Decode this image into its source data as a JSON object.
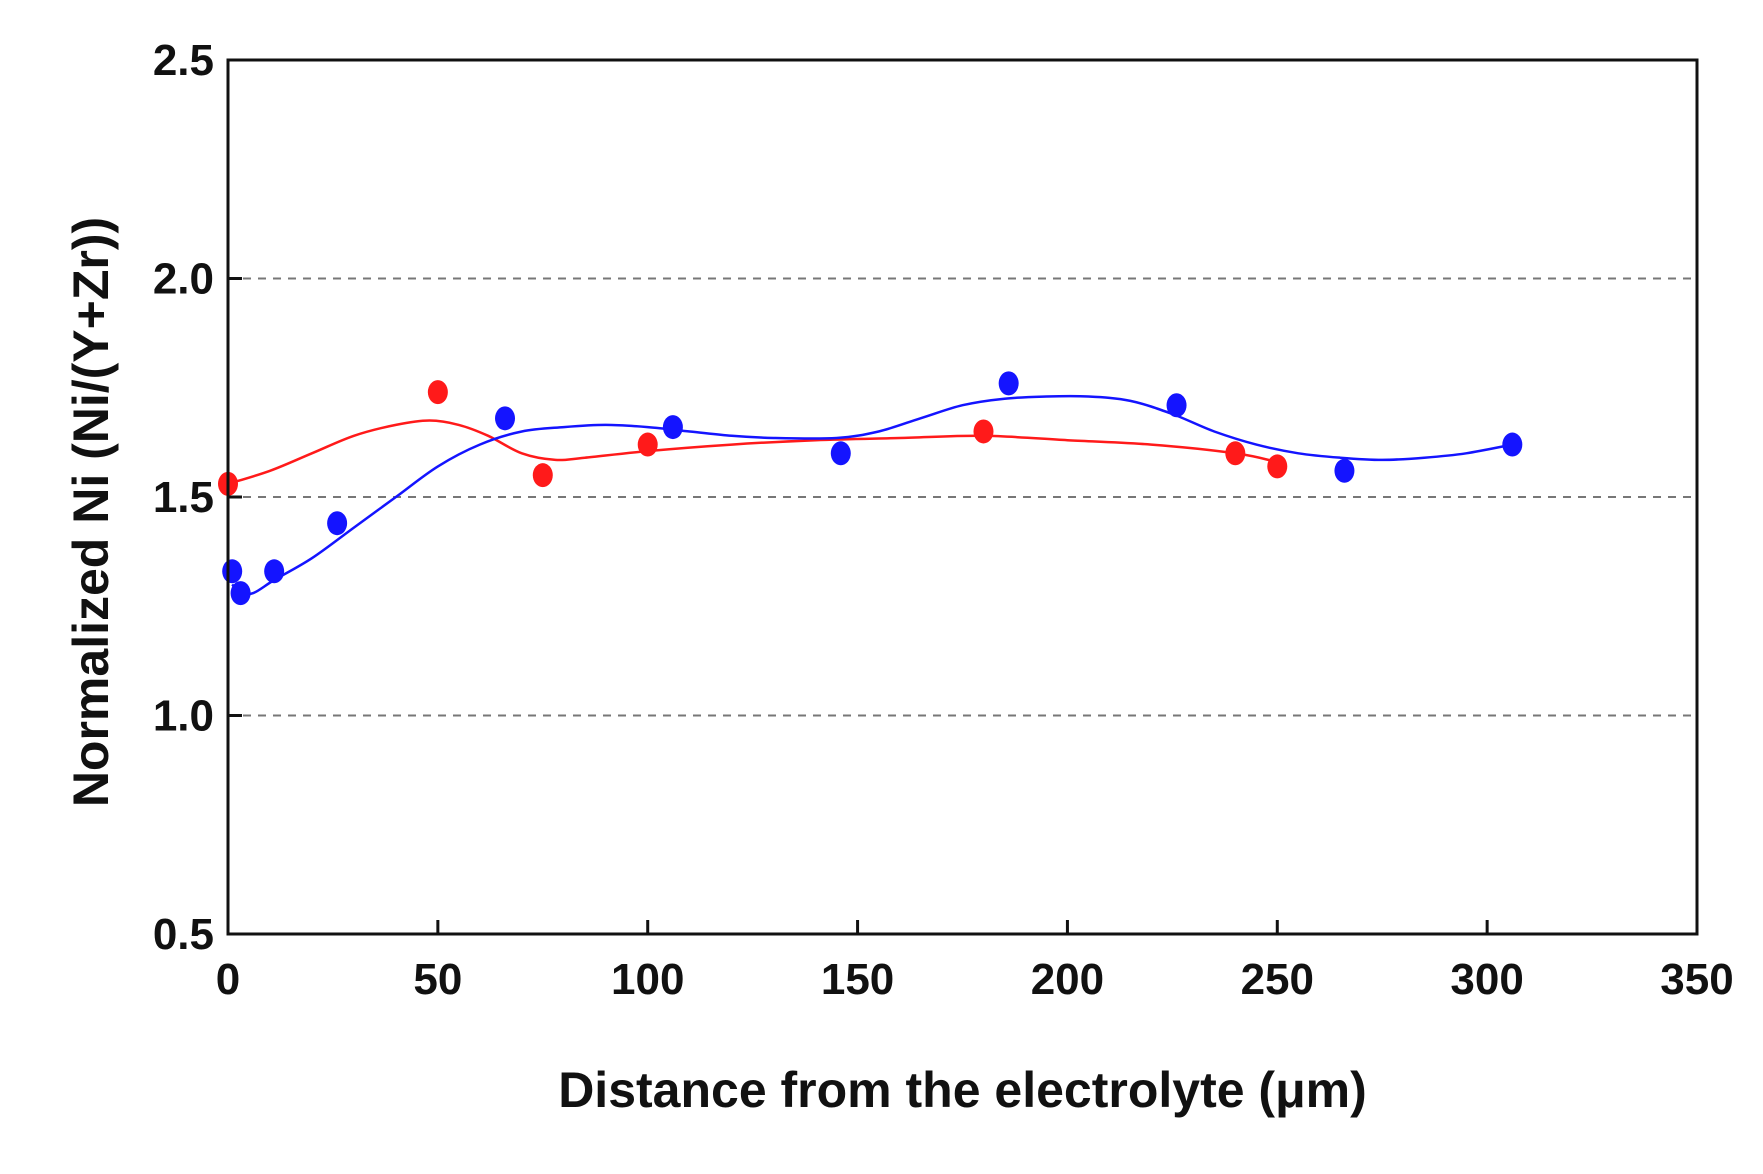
{
  "chart_data": {
    "type": "scatter",
    "title": "",
    "xlabel": "Distance from the electrolyte (μm)",
    "ylabel": "Normalized Ni (Ni/(Y+Zr))",
    "xlim": [
      0,
      350
    ],
    "ylim": [
      0.5,
      2.5
    ],
    "x_ticks": [
      0,
      50,
      100,
      150,
      200,
      250,
      300,
      350
    ],
    "x_tick_labels": [
      "0",
      "50",
      "100",
      "150",
      "200",
      "250",
      "300",
      "350"
    ],
    "y_ticks": [
      0.5,
      1.0,
      1.5,
      2.0,
      2.5
    ],
    "y_tick_labels": [
      "0.5",
      "1.0",
      "1.5",
      "2.0",
      "2.5"
    ],
    "grid": {
      "style": "dashed",
      "y_values": [
        1.0,
        1.5,
        2.0
      ]
    },
    "series": [
      {
        "name": "red",
        "color": "#ff1a1a",
        "marker": "circle",
        "points": [
          {
            "x": 0,
            "y": 1.53
          },
          {
            "x": 50,
            "y": 1.74
          },
          {
            "x": 75,
            "y": 1.55
          },
          {
            "x": 100,
            "y": 1.62
          },
          {
            "x": 180,
            "y": 1.65
          },
          {
            "x": 240,
            "y": 1.6
          },
          {
            "x": 250,
            "y": 1.57
          }
        ],
        "fit_curve": [
          [
            0,
            1.53
          ],
          [
            10,
            1.56
          ],
          [
            20,
            1.6
          ],
          [
            30,
            1.64
          ],
          [
            40,
            1.665
          ],
          [
            48,
            1.675
          ],
          [
            55,
            1.665
          ],
          [
            62,
            1.64
          ],
          [
            70,
            1.6
          ],
          [
            78,
            1.585
          ],
          [
            85,
            1.59
          ],
          [
            100,
            1.605
          ],
          [
            120,
            1.62
          ],
          [
            140,
            1.63
          ],
          [
            160,
            1.635
          ],
          [
            180,
            1.64
          ],
          [
            200,
            1.63
          ],
          [
            220,
            1.62
          ],
          [
            240,
            1.6
          ],
          [
            250,
            1.58
          ]
        ]
      },
      {
        "name": "blue",
        "color": "#1414ff",
        "marker": "circle",
        "points": [
          {
            "x": 1,
            "y": 1.33
          },
          {
            "x": 3,
            "y": 1.28
          },
          {
            "x": 11,
            "y": 1.33
          },
          {
            "x": 26,
            "y": 1.44
          },
          {
            "x": 66,
            "y": 1.68
          },
          {
            "x": 106,
            "y": 1.66
          },
          {
            "x": 146,
            "y": 1.6
          },
          {
            "x": 186,
            "y": 1.76
          },
          {
            "x": 226,
            "y": 1.71
          },
          {
            "x": 266,
            "y": 1.56
          },
          {
            "x": 306,
            "y": 1.62
          }
        ],
        "fit_curve": [
          [
            1,
            1.3
          ],
          [
            3,
            1.28
          ],
          [
            6,
            1.28
          ],
          [
            11,
            1.31
          ],
          [
            20,
            1.36
          ],
          [
            30,
            1.43
          ],
          [
            40,
            1.5
          ],
          [
            50,
            1.57
          ],
          [
            60,
            1.62
          ],
          [
            70,
            1.65
          ],
          [
            80,
            1.66
          ],
          [
            90,
            1.665
          ],
          [
            100,
            1.66
          ],
          [
            110,
            1.65
          ],
          [
            120,
            1.64
          ],
          [
            130,
            1.635
          ],
          [
            145,
            1.635
          ],
          [
            155,
            1.65
          ],
          [
            165,
            1.68
          ],
          [
            175,
            1.71
          ],
          [
            185,
            1.725
          ],
          [
            195,
            1.73
          ],
          [
            205,
            1.73
          ],
          [
            215,
            1.72
          ],
          [
            225,
            1.69
          ],
          [
            235,
            1.65
          ],
          [
            245,
            1.62
          ],
          [
            255,
            1.6
          ],
          [
            265,
            1.59
          ],
          [
            275,
            1.585
          ],
          [
            285,
            1.59
          ],
          [
            295,
            1.6
          ],
          [
            306,
            1.62
          ]
        ]
      }
    ]
  }
}
